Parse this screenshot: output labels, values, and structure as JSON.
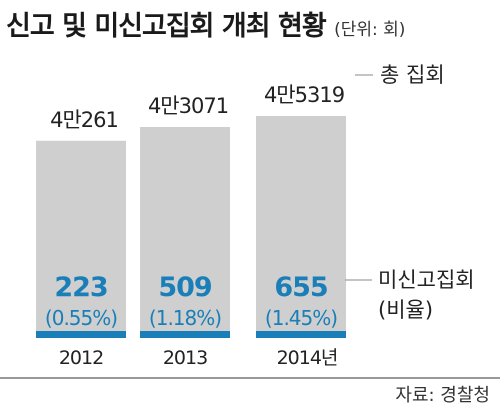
{
  "title": "신고 및 미신고집회 개최 현황",
  "unit": "(단위: 회)",
  "legend_total": "총 집회",
  "legend_unreported": "미신고집회",
  "legend_ratio": "(비율)",
  "source": "자료: 경찰청",
  "colors": {
    "total_bar": "#cfcfcf",
    "unreported": "#1a7fb8"
  },
  "chart_data": {
    "type": "bar",
    "categories": [
      "2012",
      "2013",
      "2014년"
    ],
    "series": [
      {
        "name": "총 집회",
        "values": [
          40261,
          43071,
          45319
        ],
        "labels": [
          "4만261",
          "4만3071",
          "4만5319"
        ]
      },
      {
        "name": "미신고집회",
        "values": [
          223,
          509,
          655
        ],
        "labels": [
          "223",
          "509",
          "655"
        ]
      }
    ],
    "ratios": [
      "(0.55%)",
      "(1.18%)",
      "(1.45%)"
    ]
  }
}
